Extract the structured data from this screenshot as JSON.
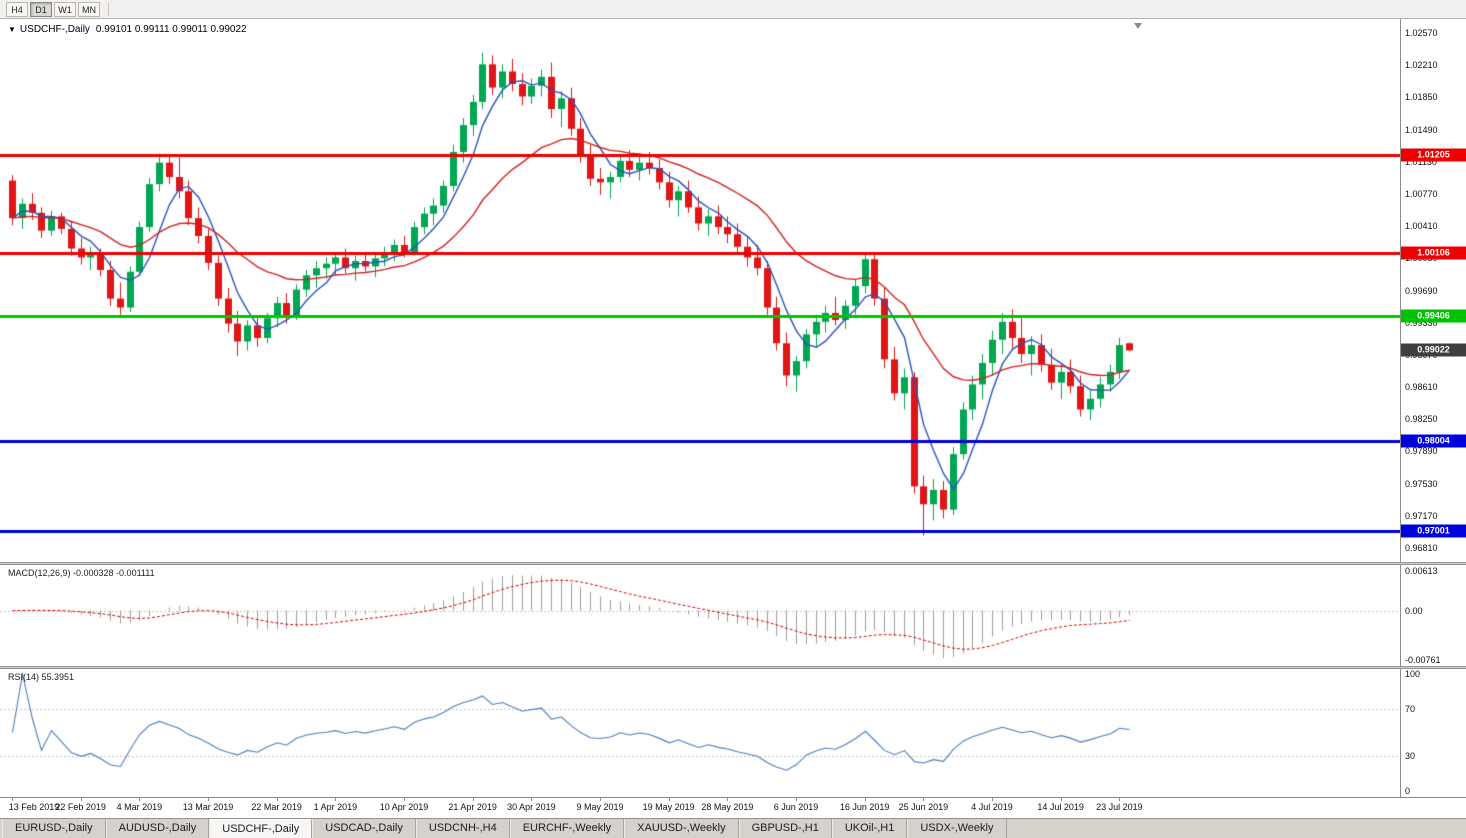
{
  "toolbar": {
    "timeframes": [
      {
        "label": "H4",
        "active": false
      },
      {
        "label": "D1",
        "active": true
      },
      {
        "label": "W1",
        "active": false
      },
      {
        "label": "MN",
        "active": false
      }
    ]
  },
  "chart": {
    "symbol_title": "USDCHF-,Daily",
    "ohlc_text": "0.99101 0.99111 0.99011 0.99022"
  },
  "chart_data": {
    "type": "candlestick",
    "symbol": "USDCHF-",
    "timeframe": "Daily",
    "ohlc_current": {
      "open": "0.99101",
      "high": "0.99111",
      "low": "0.99011",
      "close": "0.99022"
    },
    "up_color": "#00a651",
    "down_color": "#e01515",
    "price_axis": {
      "max": 1.02727,
      "min": 0.96654,
      "ticks": [
        "1.02570",
        "1.02210",
        "1.01850",
        "1.01490",
        "1.01130",
        "1.00770",
        "1.00410",
        "1.00050",
        "0.99690",
        "0.99330",
        "0.98970",
        "0.98610",
        "0.98250",
        "0.97890",
        "0.97530",
        "0.97170",
        "0.96810"
      ]
    },
    "x_axis": {
      "labels": [
        {
          "text": "13 Feb 2019",
          "i": 0
        },
        {
          "text": "22 Feb 2019",
          "i": 7
        },
        {
          "text": "4 Mar 2019",
          "i": 13
        },
        {
          "text": "13 Mar 2019",
          "i": 20
        },
        {
          "text": "22 Mar 2019",
          "i": 27
        },
        {
          "text": "1 Apr 2019",
          "i": 33
        },
        {
          "text": "10 Apr 2019",
          "i": 40
        },
        {
          "text": "21 Apr 2019",
          "i": 47
        },
        {
          "text": "30 Apr 2019",
          "i": 53
        },
        {
          "text": "9 May 2019",
          "i": 60
        },
        {
          "text": "19 May 2019",
          "i": 67
        },
        {
          "text": "28 May 2019",
          "i": 73
        },
        {
          "text": "6 Jun 2019",
          "i": 80
        },
        {
          "text": "16 Jun 2019",
          "i": 87
        },
        {
          "text": "25 Jun 2019",
          "i": 93
        },
        {
          "text": "4 Jul 2019",
          "i": 100
        },
        {
          "text": "14 Jul 2019",
          "i": 107
        },
        {
          "text": "23 Jul 2019",
          "i": 113
        }
      ]
    },
    "moving_averages": [
      {
        "type": "sma",
        "period": 5,
        "color": "#2a52be"
      },
      {
        "type": "ema",
        "period": 20,
        "color": "#d42020"
      }
    ],
    "horizontal_lines": [
      {
        "price": 1.01205,
        "label": "1.01205",
        "color": "#ee0000",
        "width": 3
      },
      {
        "price": 1.00106,
        "label": "1.00106",
        "color": "#ee0000",
        "width": 3
      },
      {
        "price": 0.99406,
        "label": "0.99406",
        "color": "#00c400",
        "width": 3
      },
      {
        "price": 0.98004,
        "label": "0.98004",
        "color": "#0000dd",
        "width": 3
      },
      {
        "price": 0.97001,
        "label": "0.97001",
        "color": "#0000dd",
        "width": 3
      }
    ],
    "current_price": {
      "price": 0.99022,
      "label": "0.99022",
      "bg": "#3f3f3f"
    },
    "macd": {
      "label": "MACD(12,26,9) -0.000328 -0.001111",
      "fast": 12,
      "slow": 26,
      "signal": 9,
      "max": 0.00613,
      "min": -0.00761,
      "axis_ticks": [
        "0.00613",
        "0.00",
        "-0.00761"
      ],
      "histogram_color": "#9c9c9c",
      "signal_color": "#d00000"
    },
    "rsi": {
      "label": "RSI(14) 55.3951",
      "period": 14,
      "axis_ticks": [
        "100",
        "70",
        "30",
        "0"
      ],
      "levels": [
        70,
        30
      ],
      "color": "#4b7dbb"
    },
    "candles": [
      [
        1.0092,
        1.0098,
        1.0042,
        1.005
      ],
      [
        1.005,
        1.0072,
        1.0038,
        1.0066
      ],
      [
        1.0066,
        1.0078,
        1.0048,
        1.0056
      ],
      [
        1.0056,
        1.0062,
        1.0028,
        1.0036
      ],
      [
        1.0036,
        1.0058,
        1.003,
        1.0052
      ],
      [
        1.0052,
        1.0056,
        1.0032,
        1.0038
      ],
      [
        1.0038,
        1.0046,
        1.0008,
        1.0016
      ],
      [
        1.0016,
        1.0028,
        0.9998,
        1.0006
      ],
      [
        1.0006,
        1.0018,
        0.9992,
        1.001
      ],
      [
        1.001,
        1.0016,
        0.9985,
        0.9992
      ],
      [
        0.9992,
        1.0002,
        0.9952,
        0.996
      ],
      [
        0.996,
        0.9978,
        0.9942,
        0.995
      ],
      [
        0.995,
        0.9996,
        0.9945,
        0.999
      ],
      [
        0.999,
        1.0046,
        0.9985,
        1.004
      ],
      [
        1.004,
        1.0095,
        1.0035,
        1.0088
      ],
      [
        1.0088,
        1.0122,
        1.008,
        1.0112
      ],
      [
        1.0112,
        1.012,
        1.0088,
        1.0096
      ],
      [
        1.0096,
        1.0118,
        1.0072,
        1.008
      ],
      [
        1.008,
        1.0092,
        1.0042,
        1.005
      ],
      [
        1.005,
        1.0062,
        1.0022,
        1.003
      ],
      [
        1.003,
        1.0038,
        0.9992,
        1.0
      ],
      [
        1.0,
        1.0008,
        0.9952,
        0.996
      ],
      [
        0.996,
        0.9972,
        0.9922,
        0.9932
      ],
      [
        0.9932,
        0.9946,
        0.9896,
        0.9912
      ],
      [
        0.9912,
        0.9936,
        0.9902,
        0.993
      ],
      [
        0.993,
        0.994,
        0.9906,
        0.9916
      ],
      [
        0.9916,
        0.9944,
        0.991,
        0.9938
      ],
      [
        0.9938,
        0.9962,
        0.9928,
        0.9955
      ],
      [
        0.9955,
        0.9966,
        0.9932,
        0.994
      ],
      [
        0.994,
        0.9976,
        0.9936,
        0.997
      ],
      [
        0.997,
        0.9992,
        0.9962,
        0.9986
      ],
      [
        0.9986,
        1.0002,
        0.9972,
        0.9994
      ],
      [
        0.9994,
        1.0006,
        0.9982,
        0.9999
      ],
      [
        0.9999,
        1.0012,
        0.9986,
        1.0006
      ],
      [
        1.0006,
        1.0016,
        0.9988,
        0.9994
      ],
      [
        0.9994,
        1.0008,
        0.998,
        1.0002
      ],
      [
        1.0002,
        1.0012,
        0.999,
        0.9996
      ],
      [
        0.9996,
        1.001,
        0.9984,
        1.0005
      ],
      [
        1.0005,
        1.0018,
        0.9996,
        1.0012
      ],
      [
        1.0012,
        1.0026,
        1.0002,
        1.002
      ],
      [
        1.002,
        1.003,
        1.0006,
        1.0012
      ],
      [
        1.0012,
        1.0046,
        1.0008,
        1.004
      ],
      [
        1.004,
        1.0062,
        1.0032,
        1.0055
      ],
      [
        1.0055,
        1.0072,
        1.0042,
        1.0064
      ],
      [
        1.0064,
        1.0092,
        1.0056,
        1.0086
      ],
      [
        1.0086,
        1.0132,
        1.008,
        1.0124
      ],
      [
        1.0124,
        1.0162,
        1.0112,
        1.0154
      ],
      [
        1.0154,
        1.0188,
        1.0142,
        1.018
      ],
      [
        1.018,
        1.0235,
        1.0172,
        1.0222
      ],
      [
        1.0222,
        1.0232,
        1.0188,
        1.0196
      ],
      [
        1.0196,
        1.0222,
        1.0184,
        1.0214
      ],
      [
        1.0214,
        1.0228,
        1.0192,
        1.02
      ],
      [
        1.02,
        1.0212,
        1.0176,
        1.0186
      ],
      [
        1.0186,
        1.0206,
        1.0178,
        1.0198
      ],
      [
        1.0198,
        1.0216,
        1.0186,
        1.0208
      ],
      [
        1.0208,
        1.0224,
        1.0162,
        1.0172
      ],
      [
        1.0172,
        1.0192,
        1.0152,
        1.0184
      ],
      [
        1.0184,
        1.0196,
        1.0142,
        1.015
      ],
      [
        1.015,
        1.0162,
        1.0112,
        1.012
      ],
      [
        1.012,
        1.0132,
        1.0086,
        1.0094
      ],
      [
        1.0094,
        1.0106,
        1.0076,
        1.009
      ],
      [
        1.009,
        1.0102,
        1.0072,
        1.0096
      ],
      [
        1.0096,
        1.0122,
        1.009,
        1.0114
      ],
      [
        1.0114,
        1.0126,
        1.0096,
        1.0104
      ],
      [
        1.0104,
        1.012,
        1.0092,
        1.0112
      ],
      [
        1.0112,
        1.0124,
        1.0099,
        1.0106
      ],
      [
        1.0106,
        1.0116,
        1.0082,
        1.009
      ],
      [
        1.009,
        1.0102,
        1.0062,
        1.007
      ],
      [
        1.007,
        1.0086,
        1.0052,
        1.008
      ],
      [
        1.008,
        1.0092,
        1.0056,
        1.0062
      ],
      [
        1.0062,
        1.0074,
        1.0036,
        1.0044
      ],
      [
        1.0044,
        1.006,
        1.003,
        1.0052
      ],
      [
        1.0052,
        1.0064,
        1.0032,
        1.004
      ],
      [
        1.004,
        1.0052,
        1.0022,
        1.0032
      ],
      [
        1.0032,
        1.0044,
        1.001,
        1.0018
      ],
      [
        1.0018,
        1.003,
        0.9996,
        1.0006
      ],
      [
        1.0006,
        1.002,
        0.9986,
        0.9994
      ],
      [
        0.9994,
        1.0002,
        0.9942,
        0.995
      ],
      [
        0.995,
        0.9962,
        0.9902,
        0.991
      ],
      [
        0.991,
        0.9922,
        0.9862,
        0.9874
      ],
      [
        0.9874,
        0.9896,
        0.9856,
        0.989
      ],
      [
        0.989,
        0.9926,
        0.9882,
        0.992
      ],
      [
        0.992,
        0.9942,
        0.9906,
        0.9934
      ],
      [
        0.9934,
        0.9952,
        0.9922,
        0.9944
      ],
      [
        0.9944,
        0.9962,
        0.993,
        0.9936
      ],
      [
        0.9936,
        0.9958,
        0.9926,
        0.9952
      ],
      [
        0.9952,
        0.9982,
        0.9942,
        0.9974
      ],
      [
        0.9974,
        1.0012,
        0.9966,
        1.0004
      ],
      [
        1.0004,
        1.001,
        0.9952,
        0.996
      ],
      [
        0.996,
        0.9972,
        0.9882,
        0.9892
      ],
      [
        0.9892,
        0.9906,
        0.9846,
        0.9854
      ],
      [
        0.9854,
        0.9882,
        0.9836,
        0.9872
      ],
      [
        0.9872,
        0.9878,
        0.9742,
        0.975
      ],
      [
        0.975,
        0.9762,
        0.9695,
        0.973
      ],
      [
        0.973,
        0.9758,
        0.9712,
        0.9746
      ],
      [
        0.9746,
        0.9756,
        0.9714,
        0.9724
      ],
      [
        0.9724,
        0.9794,
        0.9718,
        0.9786
      ],
      [
        0.9786,
        0.9844,
        0.978,
        0.9836
      ],
      [
        0.9836,
        0.9874,
        0.9824,
        0.9864
      ],
      [
        0.9864,
        0.9898,
        0.9848,
        0.9888
      ],
      [
        0.9888,
        0.9924,
        0.9874,
        0.9914
      ],
      [
        0.9914,
        0.9944,
        0.9898,
        0.9934
      ],
      [
        0.9934,
        0.9948,
        0.9904,
        0.9916
      ],
      [
        0.9916,
        0.9938,
        0.9888,
        0.9898
      ],
      [
        0.9898,
        0.9918,
        0.9874,
        0.9908
      ],
      [
        0.9908,
        0.992,
        0.9878,
        0.9886
      ],
      [
        0.9886,
        0.9904,
        0.9858,
        0.9866
      ],
      [
        0.9866,
        0.9888,
        0.9848,
        0.9878
      ],
      [
        0.9878,
        0.9892,
        0.9854,
        0.9862
      ],
      [
        0.9862,
        0.9874,
        0.9828,
        0.9836
      ],
      [
        0.9836,
        0.9858,
        0.9824,
        0.9848
      ],
      [
        0.9848,
        0.9872,
        0.9838,
        0.9864
      ],
      [
        0.9864,
        0.9886,
        0.9856,
        0.9878
      ],
      [
        0.9878,
        0.9916,
        0.987,
        0.9908
      ],
      [
        0.991,
        0.9911,
        0.9901,
        0.9902
      ]
    ]
  },
  "tabs": [
    {
      "label": "EURUSD-,Daily",
      "active": false
    },
    {
      "label": "AUDUSD-,Daily",
      "active": false
    },
    {
      "label": "USDCHF-,Daily",
      "active": true
    },
    {
      "label": "USDCAD-,Daily",
      "active": false
    },
    {
      "label": "USDCNH-,H4",
      "active": false
    },
    {
      "label": "EURCHF-,Weekly",
      "active": false
    },
    {
      "label": "XAUUSD-,Weekly",
      "active": false
    },
    {
      "label": "GBPUSD-,H1",
      "active": false
    },
    {
      "label": "UKOil-,H1",
      "active": false
    },
    {
      "label": "USDX-,Weekly",
      "active": false
    }
  ]
}
